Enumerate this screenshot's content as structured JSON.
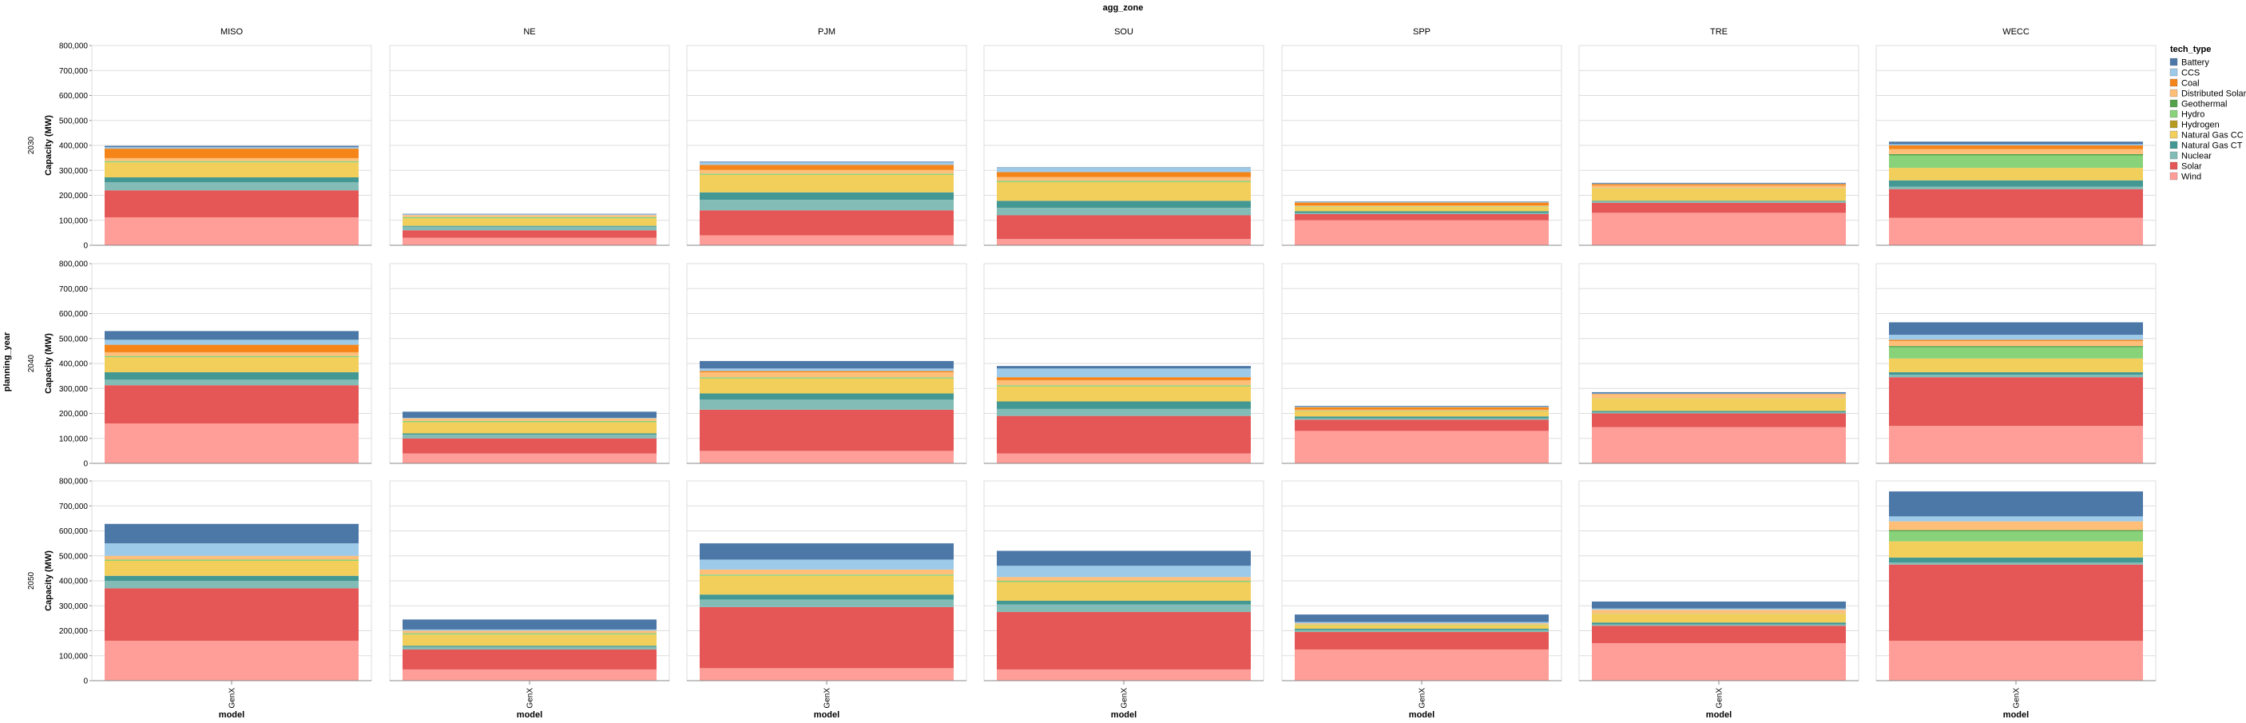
{
  "chart_data": {
    "type": "bar",
    "stacked": true,
    "facet_column_title": "agg_zone",
    "facet_row_title": "planning_year",
    "columns": [
      "MISO",
      "NE",
      "PJM",
      "SOU",
      "SPP",
      "TRE",
      "WECC"
    ],
    "rows": [
      "2030",
      "2040",
      "2050"
    ],
    "x_category": "GenX",
    "xlabel": "model",
    "ylabel": "Capacity (MW)",
    "ylim": [
      0,
      800000
    ],
    "yticks": [
      0,
      100000,
      200000,
      300000,
      400000,
      500000,
      600000,
      700000,
      800000
    ],
    "ytick_labels": [
      "0",
      "100,000",
      "200,000",
      "300,000",
      "400,000",
      "500,000",
      "600,000",
      "700,000",
      "800,000"
    ],
    "grid": true,
    "legend_title": "tech_type",
    "legend_position": "right",
    "series": [
      {
        "name": "Battery",
        "color": "#4c78a8"
      },
      {
        "name": "CCS",
        "color": "#9ecae9"
      },
      {
        "name": "Coal",
        "color": "#f58518"
      },
      {
        "name": "Distributed Solar",
        "color": "#ffbf79"
      },
      {
        "name": "Geothermal",
        "color": "#54a24b"
      },
      {
        "name": "Hydro",
        "color": "#88d27a"
      },
      {
        "name": "Hydrogen",
        "color": "#b79a20"
      },
      {
        "name": "Natural Gas CC",
        "color": "#f2cf5b"
      },
      {
        "name": "Natural Gas CT",
        "color": "#439894"
      },
      {
        "name": "Nuclear",
        "color": "#83bcb6"
      },
      {
        "name": "Solar",
        "color": "#e45756"
      },
      {
        "name": "Wind",
        "color": "#ff9d98"
      }
    ],
    "stack_order_bottom_to_top": [
      "Wind",
      "Solar",
      "Nuclear",
      "Natural Gas CT",
      "Natural Gas CC",
      "Hydrogen",
      "Hydro",
      "Geothermal",
      "Distributed Solar",
      "Coal",
      "CCS",
      "Battery"
    ],
    "values": {
      "2030": {
        "MISO": {
          "Wind": 112000,
          "Solar": 108000,
          "Nuclear": 32000,
          "Natural Gas CT": 20000,
          "Natural Gas CC": 60000,
          "Hydrogen": 0,
          "Hydro": 5000,
          "Geothermal": 0,
          "Distributed Solar": 12000,
          "Coal": 38000,
          "CCS": 6000,
          "Battery": 5000
        },
        "NE": {
          "Wind": 30000,
          "Solar": 30000,
          "Nuclear": 15000,
          "Natural Gas CT": 3000,
          "Natural Gas CC": 30000,
          "Hydrogen": 0,
          "Hydro": 5000,
          "Geothermal": 0,
          "Distributed Solar": 8000,
          "Coal": 0,
          "CCS": 3000,
          "Battery": 2000
        },
        "PJM": {
          "Wind": 40000,
          "Solar": 100000,
          "Nuclear": 42000,
          "Natural Gas CT": 30000,
          "Natural Gas CC": 70000,
          "Hydrogen": 0,
          "Hydro": 5000,
          "Geothermal": 0,
          "Distributed Solar": 15000,
          "Coal": 20000,
          "CCS": 10000,
          "Battery": 3000
        },
        "SOU": {
          "Wind": 25000,
          "Solar": 95000,
          "Nuclear": 30000,
          "Natural Gas CT": 28000,
          "Natural Gas CC": 75000,
          "Hydrogen": 0,
          "Hydro": 5000,
          "Geothermal": 0,
          "Distributed Solar": 15000,
          "Coal": 20000,
          "CCS": 17000,
          "Battery": 2000
        },
        "SPP": {
          "Wind": 100000,
          "Solar": 25000,
          "Nuclear": 4000,
          "Natural Gas CT": 7000,
          "Natural Gas CC": 18000,
          "Hydrogen": 0,
          "Hydro": 2000,
          "Geothermal": 0,
          "Distributed Solar": 3000,
          "Coal": 12000,
          "CCS": 2000,
          "Battery": 2000
        },
        "TRE": {
          "Wind": 130000,
          "Solar": 40000,
          "Nuclear": 5000,
          "Natural Gas CT": 3000,
          "Natural Gas CC": 50000,
          "Hydrogen": 0,
          "Hydro": 1000,
          "Geothermal": 0,
          "Distributed Solar": 10000,
          "Coal": 6000,
          "CCS": 2000,
          "Battery": 3000
        },
        "WECC": {
          "Wind": 110000,
          "Solar": 115000,
          "Nuclear": 10000,
          "Natural Gas CT": 25000,
          "Natural Gas CC": 50000,
          "Hydrogen": 0,
          "Hydro": 50000,
          "Geothermal": 5000,
          "Distributed Solar": 20000,
          "Coal": 15000,
          "CCS": 5000,
          "Battery": 10000
        }
      },
      "2040": {
        "MISO": {
          "Wind": 160000,
          "Solar": 153000,
          "Nuclear": 22000,
          "Natural Gas CT": 30000,
          "Natural Gas CC": 60000,
          "Hydrogen": 0,
          "Hydro": 5000,
          "Geothermal": 0,
          "Distributed Solar": 15000,
          "Coal": 30000,
          "CCS": 20000,
          "Battery": 35000
        },
        "NE": {
          "Wind": 40000,
          "Solar": 60000,
          "Nuclear": 15000,
          "Natural Gas CT": 5000,
          "Natural Gas CC": 45000,
          "Hydrogen": 0,
          "Hydro": 5000,
          "Geothermal": 0,
          "Distributed Solar": 10000,
          "Coal": 0,
          "CCS": 2000,
          "Battery": 25000
        },
        "PJM": {
          "Wind": 50000,
          "Solar": 165000,
          "Nuclear": 40000,
          "Natural Gas CT": 25000,
          "Natural Gas CC": 60000,
          "Hydrogen": 0,
          "Hydro": 5000,
          "Geothermal": 0,
          "Distributed Solar": 20000,
          "Coal": 5000,
          "CCS": 10000,
          "Battery": 30000
        },
        "SOU": {
          "Wind": 40000,
          "Solar": 150000,
          "Nuclear": 28000,
          "Natural Gas CT": 30000,
          "Natural Gas CC": 60000,
          "Hydrogen": 0,
          "Hydro": 5000,
          "Geothermal": 0,
          "Distributed Solar": 20000,
          "Coal": 12000,
          "CCS": 35000,
          "Battery": 10000
        },
        "SPP": {
          "Wind": 130000,
          "Solar": 45000,
          "Nuclear": 5000,
          "Natural Gas CT": 8000,
          "Natural Gas CC": 20000,
          "Hydrogen": 0,
          "Hydro": 2000,
          "Geothermal": 0,
          "Distributed Solar": 5000,
          "Coal": 10000,
          "CCS": 2000,
          "Battery": 3000
        },
        "TRE": {
          "Wind": 145000,
          "Solar": 55000,
          "Nuclear": 5000,
          "Natural Gas CT": 5000,
          "Natural Gas CC": 50000,
          "Hydrogen": 0,
          "Hydro": 1000,
          "Geothermal": 0,
          "Distributed Solar": 15000,
          "Coal": 2000,
          "CCS": 2000,
          "Battery": 5000
        },
        "WECC": {
          "Wind": 150000,
          "Solar": 195000,
          "Nuclear": 10000,
          "Natural Gas CT": 10000,
          "Natural Gas CC": 55000,
          "Hydrogen": 0,
          "Hydro": 45000,
          "Geothermal": 5000,
          "Distributed Solar": 20000,
          "Coal": 5000,
          "CCS": 20000,
          "Battery": 50000
        }
      },
      "2050": {
        "MISO": {
          "Wind": 160000,
          "Solar": 210000,
          "Nuclear": 30000,
          "Natural Gas CT": 20000,
          "Natural Gas CC": 60000,
          "Hydrogen": 0,
          "Hydro": 5000,
          "Geothermal": 0,
          "Distributed Solar": 15000,
          "Coal": 0,
          "CCS": 50000,
          "Battery": 78000
        },
        "NE": {
          "Wind": 45000,
          "Solar": 80000,
          "Nuclear": 10000,
          "Natural Gas CT": 5000,
          "Natural Gas CC": 45000,
          "Hydrogen": 0,
          "Hydro": 5000,
          "Geothermal": 0,
          "Distributed Solar": 10000,
          "Coal": 0,
          "CCS": 5000,
          "Battery": 40000
        },
        "PJM": {
          "Wind": 50000,
          "Solar": 245000,
          "Nuclear": 30000,
          "Natural Gas CT": 20000,
          "Natural Gas CC": 75000,
          "Hydrogen": 0,
          "Hydro": 5000,
          "Geothermal": 0,
          "Distributed Solar": 20000,
          "Coal": 0,
          "CCS": 40000,
          "Battery": 65000
        },
        "SOU": {
          "Wind": 45000,
          "Solar": 230000,
          "Nuclear": 30000,
          "Natural Gas CT": 15000,
          "Natural Gas CC": 75000,
          "Hydrogen": 0,
          "Hydro": 5000,
          "Geothermal": 0,
          "Distributed Solar": 15000,
          "Coal": 0,
          "CCS": 45000,
          "Battery": 60000
        },
        "SPP": {
          "Wind": 125000,
          "Solar": 70000,
          "Nuclear": 8000,
          "Natural Gas CT": 5000,
          "Natural Gas CC": 15000,
          "Hydrogen": 0,
          "Hydro": 2000,
          "Geothermal": 0,
          "Distributed Solar": 5000,
          "Coal": 0,
          "CCS": 5000,
          "Battery": 30000
        },
        "TRE": {
          "Wind": 150000,
          "Solar": 70000,
          "Nuclear": 5000,
          "Natural Gas CT": 8000,
          "Natural Gas CC": 35000,
          "Hydrogen": 0,
          "Hydro": 1000,
          "Geothermal": 0,
          "Distributed Solar": 15000,
          "Coal": 0,
          "CCS": 5000,
          "Battery": 28000
        },
        "WECC": {
          "Wind": 160000,
          "Solar": 305000,
          "Nuclear": 8000,
          "Natural Gas CT": 20000,
          "Natural Gas CC": 65000,
          "Hydrogen": 0,
          "Hydro": 40000,
          "Geothermal": 5000,
          "Distributed Solar": 35000,
          "Coal": 0,
          "CCS": 20000,
          "Battery": 100000
        }
      }
    }
  }
}
